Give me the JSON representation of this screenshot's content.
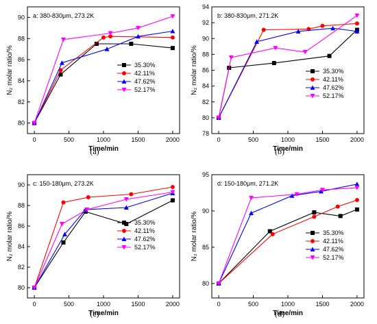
{
  "chart_data": [
    {
      "type": "line",
      "panel_label": "(a)",
      "annotation": "a: 380-830μm, 273.2K",
      "xlabel": "Time/min",
      "ylabel": "N₂ molar ratio/%",
      "xlim": [
        -100,
        2100
      ],
      "ylim": [
        79,
        91
      ],
      "xticks": [
        0,
        500,
        1000,
        1500,
        2000
      ],
      "yticks": [
        80,
        82,
        84,
        86,
        88,
        90
      ],
      "legend_position": "right",
      "grid": false,
      "series": [
        {
          "name": "35.30%",
          "color": "#000000",
          "marker": "square",
          "x": [
            0,
            380,
            900,
            1400,
            2000
          ],
          "y": [
            80.0,
            84.6,
            87.5,
            87.5,
            87.1
          ]
        },
        {
          "name": "42.11%",
          "color": "#ff0000",
          "marker": "circle",
          "x": [
            0,
            380,
            1000,
            1100,
            2000
          ],
          "y": [
            80.0,
            85.0,
            88.1,
            88.2,
            88.1
          ]
        },
        {
          "name": "47.62%",
          "color": "#0000ff",
          "marker": "triangle-up",
          "x": [
            0,
            400,
            1050,
            1500,
            2000
          ],
          "y": [
            80.0,
            85.7,
            87.0,
            88.2,
            88.7
          ]
        },
        {
          "name": "52.17%",
          "color": "#ff00ff",
          "marker": "triangle-down",
          "x": [
            0,
            420,
            1100,
            1500,
            2000
          ],
          "y": [
            80.0,
            87.9,
            88.5,
            89.0,
            90.1
          ]
        }
      ]
    },
    {
      "type": "line",
      "panel_label": "(b)",
      "annotation": "b: 380-830μm, 271.2K",
      "xlabel": "Time/min",
      "ylabel": "N₂ molar ratio/%",
      "xlim": [
        -100,
        2100
      ],
      "ylim": [
        78,
        94
      ],
      "xticks": [
        0,
        500,
        1000,
        1500,
        2000
      ],
      "yticks": [
        78,
        80,
        82,
        84,
        86,
        88,
        90,
        92,
        94
      ],
      "legend_position": "right",
      "grid": false,
      "series": [
        {
          "name": "35.30%",
          "color": "#000000",
          "marker": "square",
          "x": [
            0,
            150,
            800,
            1600,
            2000
          ],
          "y": [
            80.0,
            86.3,
            86.9,
            87.8,
            91.1
          ]
        },
        {
          "name": "42.11%",
          "color": "#ff0000",
          "marker": "circle",
          "x": [
            0,
            650,
            1300,
            1500,
            2000
          ],
          "y": [
            80.0,
            91.1,
            91.2,
            91.6,
            91.9
          ]
        },
        {
          "name": "47.62%",
          "color": "#0000ff",
          "marker": "triangle-up",
          "x": [
            0,
            550,
            1150,
            1650,
            2000
          ],
          "y": [
            80.0,
            89.6,
            90.9,
            91.3,
            90.9
          ]
        },
        {
          "name": "52.17%",
          "color": "#ff00ff",
          "marker": "triangle-down",
          "x": [
            0,
            180,
            820,
            1250,
            2000
          ],
          "y": [
            80.0,
            87.6,
            88.8,
            88.3,
            92.9
          ]
        }
      ]
    },
    {
      "type": "line",
      "panel_label": "(c)",
      "annotation": "c: 150-180μm, 273.2K",
      "xlabel": "Time/min",
      "ylabel": "N₂ molar ratio/%",
      "xlim": [
        -100,
        2100
      ],
      "ylim": [
        79,
        91
      ],
      "xticks": [
        0,
        500,
        1000,
        1500,
        2000
      ],
      "yticks": [
        80,
        82,
        84,
        86,
        88,
        90
      ],
      "legend_position": "right",
      "grid": false,
      "series": [
        {
          "name": "35.30%",
          "color": "#000000",
          "marker": "square",
          "x": [
            0,
            420,
            740,
            1330,
            2000
          ],
          "y": [
            80.0,
            84.4,
            87.4,
            86.2,
            88.5
          ]
        },
        {
          "name": "42.11%",
          "color": "#ff0000",
          "marker": "circle",
          "x": [
            0,
            420,
            780,
            1400,
            2000
          ],
          "y": [
            80.0,
            88.3,
            88.8,
            89.1,
            89.8
          ]
        },
        {
          "name": "47.62%",
          "color": "#0000ff",
          "marker": "triangle-up",
          "x": [
            0,
            440,
            740,
            1330,
            2000
          ],
          "y": [
            80.0,
            85.2,
            87.6,
            87.8,
            89.2
          ]
        },
        {
          "name": "52.17%",
          "color": "#ff00ff",
          "marker": "triangle-down",
          "x": [
            0,
            400,
            760,
            1330,
            2000
          ],
          "y": [
            80.0,
            86.2,
            87.6,
            88.6,
            89.3
          ]
        }
      ]
    },
    {
      "type": "line",
      "panel_label": "(d)",
      "annotation": "d: 150-180μm, 271.2K",
      "xlabel": "Time/min",
      "ylabel": "N₂ molar ratio/%",
      "xlim": [
        -100,
        2100
      ],
      "ylim": [
        78,
        95
      ],
      "xticks": [
        0,
        500,
        1000,
        1500,
        2000
      ],
      "yticks": [
        80,
        85,
        90,
        95
      ],
      "legend_position": "right",
      "grid": false,
      "series": [
        {
          "name": "35.30%",
          "color": "#000000",
          "marker": "square",
          "x": [
            0,
            740,
            1380,
            1760,
            2000
          ],
          "y": [
            80.0,
            87.2,
            89.8,
            89.3,
            90.2
          ]
        },
        {
          "name": "42.11%",
          "color": "#ff0000",
          "marker": "circle",
          "x": [
            0,
            780,
            1380,
            1720,
            2000
          ],
          "y": [
            80.0,
            86.8,
            89.2,
            90.6,
            91.5
          ]
        },
        {
          "name": "47.62%",
          "color": "#0000ff",
          "marker": "triangle-up",
          "x": [
            0,
            470,
            1060,
            1480,
            2000
          ],
          "y": [
            80.0,
            89.7,
            92.1,
            92.7,
            93.7
          ]
        },
        {
          "name": "52.17%",
          "color": "#ff00ff",
          "marker": "triangle-down",
          "x": [
            0,
            470,
            1130,
            1500,
            2000
          ],
          "y": [
            80.0,
            91.8,
            92.3,
            92.9,
            93.2
          ]
        }
      ]
    }
  ]
}
